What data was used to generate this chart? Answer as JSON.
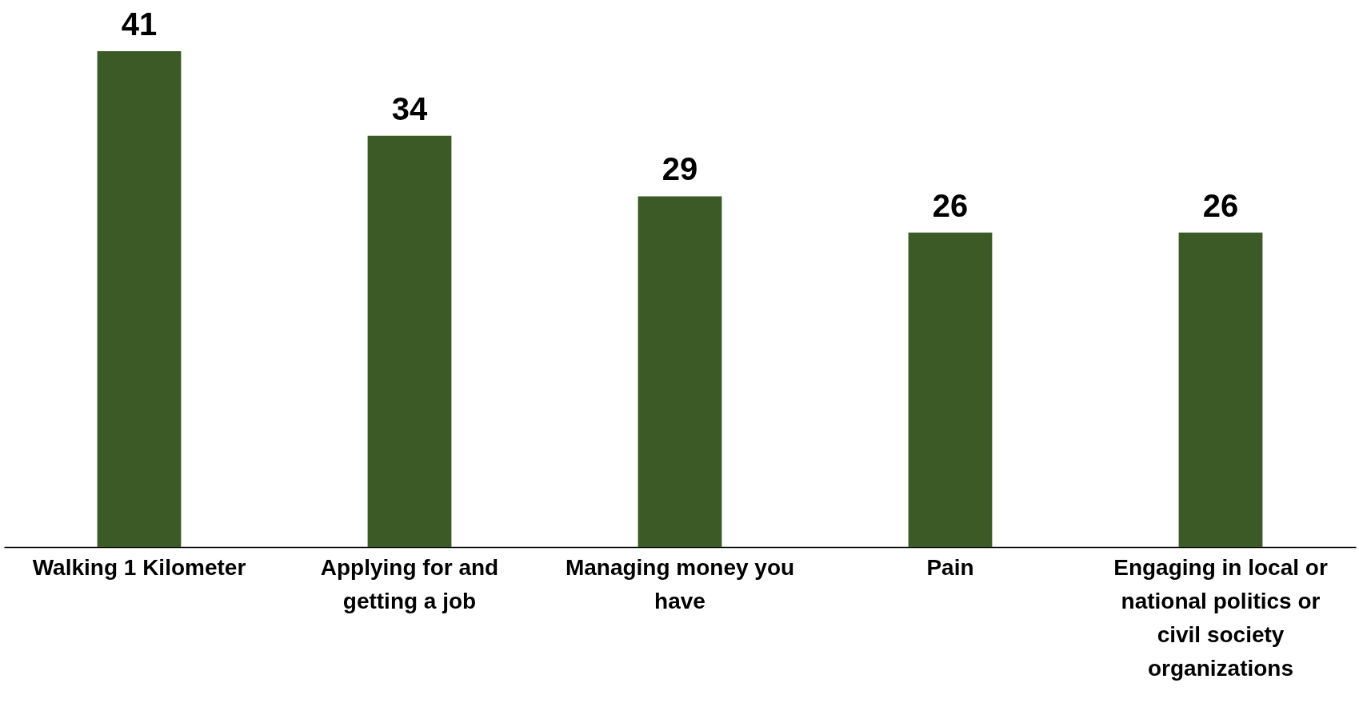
{
  "chart_data": {
    "type": "bar",
    "categories": [
      "Walking 1 Kilometer",
      "Applying for and getting a job",
      "Managing money you have",
      "Pain",
      "Engaging in local or national politics or civil society organizations"
    ],
    "values": [
      41,
      34,
      29,
      26,
      26
    ],
    "color": "#3b5a26",
    "data_labels": true
  }
}
